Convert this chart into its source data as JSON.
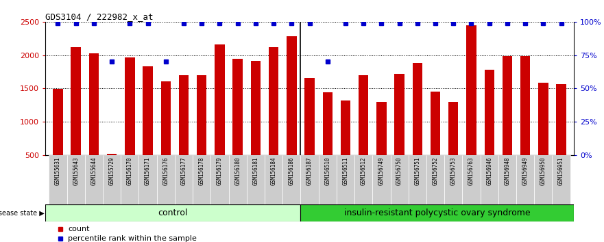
{
  "title": "GDS3104 / 222982_x_at",
  "samples": [
    "GSM155631",
    "GSM155643",
    "GSM155644",
    "GSM155729",
    "GSM156170",
    "GSM156171",
    "GSM156176",
    "GSM156177",
    "GSM156178",
    "GSM156179",
    "GSM156180",
    "GSM156181",
    "GSM156184",
    "GSM156186",
    "GSM156187",
    "GSM156510",
    "GSM156511",
    "GSM156512",
    "GSM156749",
    "GSM156750",
    "GSM156751",
    "GSM156752",
    "GSM156753",
    "GSM156763",
    "GSM156946",
    "GSM156948",
    "GSM156949",
    "GSM156950",
    "GSM156951"
  ],
  "counts": [
    1490,
    2120,
    2030,
    520,
    1960,
    1830,
    1610,
    1700,
    1700,
    2155,
    1940,
    1910,
    2120,
    2280,
    1660,
    1440,
    1320,
    1700,
    1300,
    1720,
    1880,
    1455,
    1300,
    2450,
    1780,
    1990,
    1980,
    1580,
    1560
  ],
  "percentile_ranks": [
    99,
    99,
    99,
    70,
    99,
    99,
    70,
    99,
    99,
    99,
    99,
    99,
    99,
    99,
    99,
    70,
    99,
    99,
    99,
    99,
    99,
    99,
    99,
    99,
    99,
    99,
    99,
    99,
    99
  ],
  "control_count": 14,
  "disease_count": 15,
  "control_label": "control",
  "disease_label": "insulin-resistant polycystic ovary syndrome",
  "bar_color": "#cc0000",
  "dot_color": "#0000cc",
  "ylim_left": [
    500,
    2500
  ],
  "ylim_right": [
    0,
    100
  ],
  "yticks_left": [
    500,
    1000,
    1500,
    2000,
    2500
  ],
  "yticks_right": [
    0,
    25,
    50,
    75,
    100
  ],
  "control_bg": "#ccffcc",
  "disease_bg": "#33cc33",
  "label_bg": "#cccccc",
  "legend_count_label": "count",
  "legend_pct_label": "percentile rank within the sample",
  "disease_state_label": "disease state"
}
